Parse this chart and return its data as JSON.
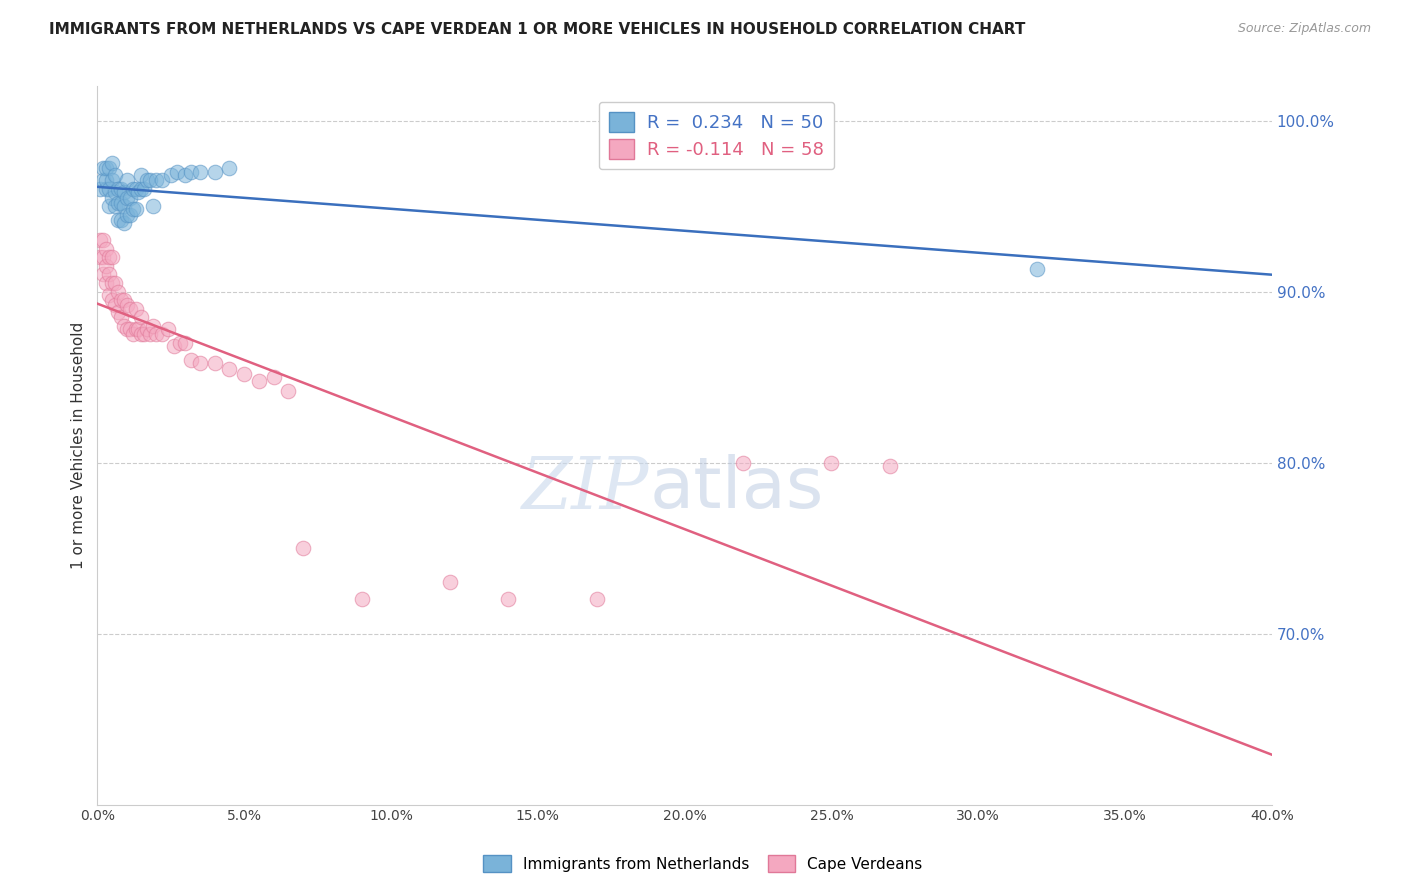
{
  "title": "IMMIGRANTS FROM NETHERLANDS VS CAPE VERDEAN 1 OR MORE VEHICLES IN HOUSEHOLD CORRELATION CHART",
  "source": "Source: ZipAtlas.com",
  "ylabel": "1 or more Vehicles in Household",
  "xlim": [
    0.0,
    0.4
  ],
  "ylim": [
    0.6,
    1.02
  ],
  "yticks": [
    0.7,
    0.8,
    0.9,
    1.0
  ],
  "ytick_labels": [
    "70.0%",
    "80.0%",
    "90.0%",
    "100.0%"
  ],
  "xticks": [
    0.0,
    0.05,
    0.1,
    0.15,
    0.2,
    0.25,
    0.3,
    0.35,
    0.4
  ],
  "xtick_labels": [
    "0.0%",
    "5.0%",
    "10.0%",
    "15.0%",
    "20.0%",
    "25.0%",
    "30.0%",
    "35.0%",
    "40.0%"
  ],
  "R_blue": 0.234,
  "N_blue": 50,
  "R_pink": -0.114,
  "N_pink": 58,
  "legend_label_blue": "Immigrants from Netherlands",
  "legend_label_pink": "Cape Verdeans",
  "watermark": "ZIPatlas",
  "blue_color": "#7ab3d9",
  "blue_edge": "#5592c4",
  "blue_line": "#3a6fbd",
  "pink_color": "#f4a8c0",
  "pink_edge": "#e07898",
  "pink_line": "#e06080",
  "blue_x": [
    0.001,
    0.002,
    0.002,
    0.003,
    0.003,
    0.003,
    0.004,
    0.004,
    0.004,
    0.005,
    0.005,
    0.005,
    0.006,
    0.006,
    0.006,
    0.007,
    0.007,
    0.007,
    0.008,
    0.008,
    0.008,
    0.009,
    0.009,
    0.009,
    0.01,
    0.01,
    0.01,
    0.011,
    0.011,
    0.012,
    0.012,
    0.013,
    0.013,
    0.014,
    0.015,
    0.015,
    0.016,
    0.017,
    0.018,
    0.019,
    0.02,
    0.022,
    0.025,
    0.027,
    0.03,
    0.032,
    0.035,
    0.04,
    0.045,
    0.32
  ],
  "blue_y": [
    0.96,
    0.965,
    0.972,
    0.96,
    0.965,
    0.972,
    0.95,
    0.96,
    0.972,
    0.955,
    0.965,
    0.975,
    0.95,
    0.958,
    0.968,
    0.942,
    0.952,
    0.96,
    0.942,
    0.952,
    0.96,
    0.94,
    0.95,
    0.958,
    0.945,
    0.955,
    0.965,
    0.945,
    0.955,
    0.948,
    0.96,
    0.948,
    0.96,
    0.958,
    0.96,
    0.968,
    0.96,
    0.965,
    0.965,
    0.95,
    0.965,
    0.965,
    0.968,
    0.97,
    0.968,
    0.97,
    0.97,
    0.97,
    0.972,
    0.913
  ],
  "pink_x": [
    0.001,
    0.001,
    0.002,
    0.002,
    0.002,
    0.003,
    0.003,
    0.003,
    0.004,
    0.004,
    0.004,
    0.005,
    0.005,
    0.005,
    0.006,
    0.006,
    0.007,
    0.007,
    0.008,
    0.008,
    0.009,
    0.009,
    0.01,
    0.01,
    0.011,
    0.011,
    0.012,
    0.013,
    0.013,
    0.014,
    0.015,
    0.015,
    0.016,
    0.017,
    0.018,
    0.019,
    0.02,
    0.022,
    0.024,
    0.026,
    0.028,
    0.03,
    0.032,
    0.035,
    0.04,
    0.045,
    0.05,
    0.055,
    0.06,
    0.065,
    0.07,
    0.09,
    0.12,
    0.14,
    0.17,
    0.22,
    0.25,
    0.27
  ],
  "pink_y": [
    0.92,
    0.93,
    0.91,
    0.92,
    0.93,
    0.905,
    0.915,
    0.925,
    0.898,
    0.91,
    0.92,
    0.895,
    0.905,
    0.92,
    0.892,
    0.905,
    0.888,
    0.9,
    0.885,
    0.895,
    0.88,
    0.895,
    0.878,
    0.892,
    0.878,
    0.89,
    0.875,
    0.878,
    0.89,
    0.878,
    0.875,
    0.885,
    0.875,
    0.878,
    0.875,
    0.88,
    0.875,
    0.875,
    0.878,
    0.868,
    0.87,
    0.87,
    0.86,
    0.858,
    0.858,
    0.855,
    0.852,
    0.848,
    0.85,
    0.842,
    0.75,
    0.72,
    0.73,
    0.72,
    0.72,
    0.8,
    0.8,
    0.798
  ]
}
